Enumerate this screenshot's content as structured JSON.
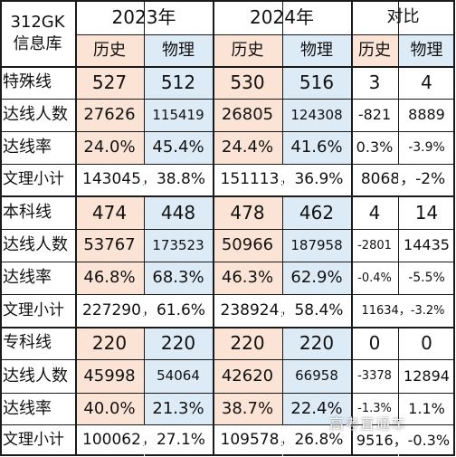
{
  "corner": {
    "line1": "312GK",
    "line2": "信息库"
  },
  "years": [
    "2023年",
    "2024年",
    "对比"
  ],
  "subjects": [
    "历史",
    "物理",
    "历史",
    "物理",
    "历史",
    "物理"
  ],
  "sections": [
    {
      "label": "特殊线",
      "score": [
        "527",
        "512",
        "530",
        "516",
        "3",
        "4"
      ],
      "count": [
        "27626",
        "115419",
        "26805",
        "124308",
        "-821",
        "8889"
      ],
      "rate": [
        "24.0%",
        "45.4%",
        "24.4%",
        "41.6%",
        "0.3%",
        "-3.9%"
      ],
      "subtotal": [
        "143045，38.8%",
        "151113，36.9%",
        "8068，-2%"
      ]
    },
    {
      "label": "本科线",
      "score": [
        "474",
        "448",
        "478",
        "462",
        "4",
        "14"
      ],
      "count": [
        "53767",
        "173523",
        "50966",
        "187958",
        "-2801",
        "14435"
      ],
      "rate": [
        "46.8%",
        "68.3%",
        "46.3%",
        "62.9%",
        "-0.4%",
        "-5.5%"
      ],
      "subtotal": [
        "227290，61.6%",
        "238924，58.4%",
        "11634，-3.2%"
      ]
    },
    {
      "label": "专科线",
      "score": [
        "220",
        "220",
        "220",
        "220",
        "0",
        "0"
      ],
      "count": [
        "45998",
        "54064",
        "42620",
        "66958",
        "-3378",
        "12894"
      ],
      "rate": [
        "40.0%",
        "21.3%",
        "38.7%",
        "22.4%",
        "-1.3%",
        "1.1%"
      ],
      "subtotal": [
        "100062，27.1%",
        "109578，26.8%",
        "9516，-0.3%"
      ]
    }
  ],
  "row_labels": {
    "count": "达线人数",
    "rate": "达线率",
    "subtotal": "文理小计"
  },
  "watermark": "高考直通车",
  "colors": {
    "history_fill": "#fbe4d5",
    "physics_fill": "#ddebf7",
    "grid": "#1a1a1a"
  }
}
